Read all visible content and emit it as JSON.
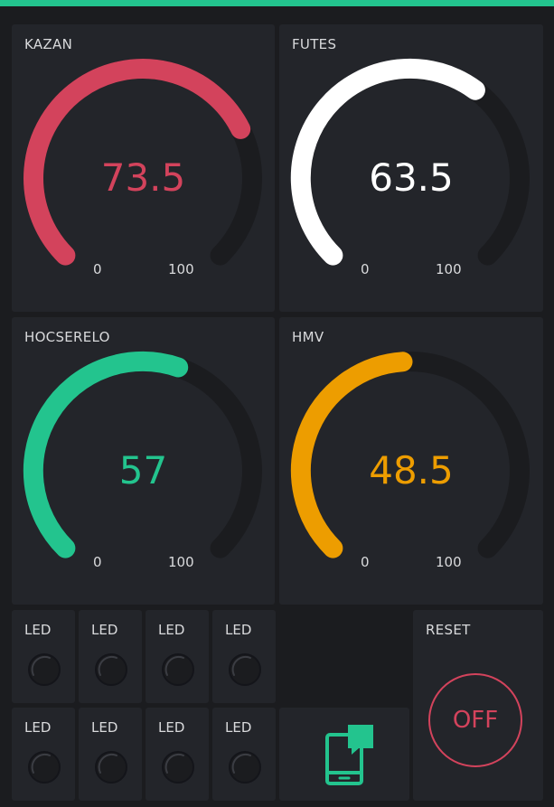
{
  "colors": {
    "accent_green": "#23c48e",
    "red": "#d3435c",
    "white": "#ffffff",
    "green": "#23c48e",
    "orange": "#ed9d00",
    "track": "#1b1c1f",
    "panel": "#23252a"
  },
  "gauges": [
    {
      "label": "KAZAN",
      "value": "73.5",
      "fraction": 0.735,
      "min": "0",
      "max": "100",
      "color": "#d3435c"
    },
    {
      "label": "FUTES",
      "value": "63.5",
      "fraction": 0.635,
      "min": "0",
      "max": "100",
      "color": "#ffffff"
    },
    {
      "label": "HOCSERELO",
      "value": "57",
      "fraction": 0.57,
      "min": "0",
      "max": "100",
      "color": "#23c48e"
    },
    {
      "label": "HMV",
      "value": "48.5",
      "fraction": 0.485,
      "min": "0",
      "max": "100",
      "color": "#ed9d00"
    }
  ],
  "leds": [
    {
      "label": "LED"
    },
    {
      "label": "LED"
    },
    {
      "label": "LED"
    },
    {
      "label": "LED"
    },
    {
      "label": "LED"
    },
    {
      "label": "LED"
    },
    {
      "label": "LED"
    },
    {
      "label": "LED"
    }
  ],
  "reset": {
    "label": "RESET",
    "button_label": "OFF"
  },
  "icons": {
    "device_button": "phone-chat-icon",
    "led": "led-off-icon"
  }
}
